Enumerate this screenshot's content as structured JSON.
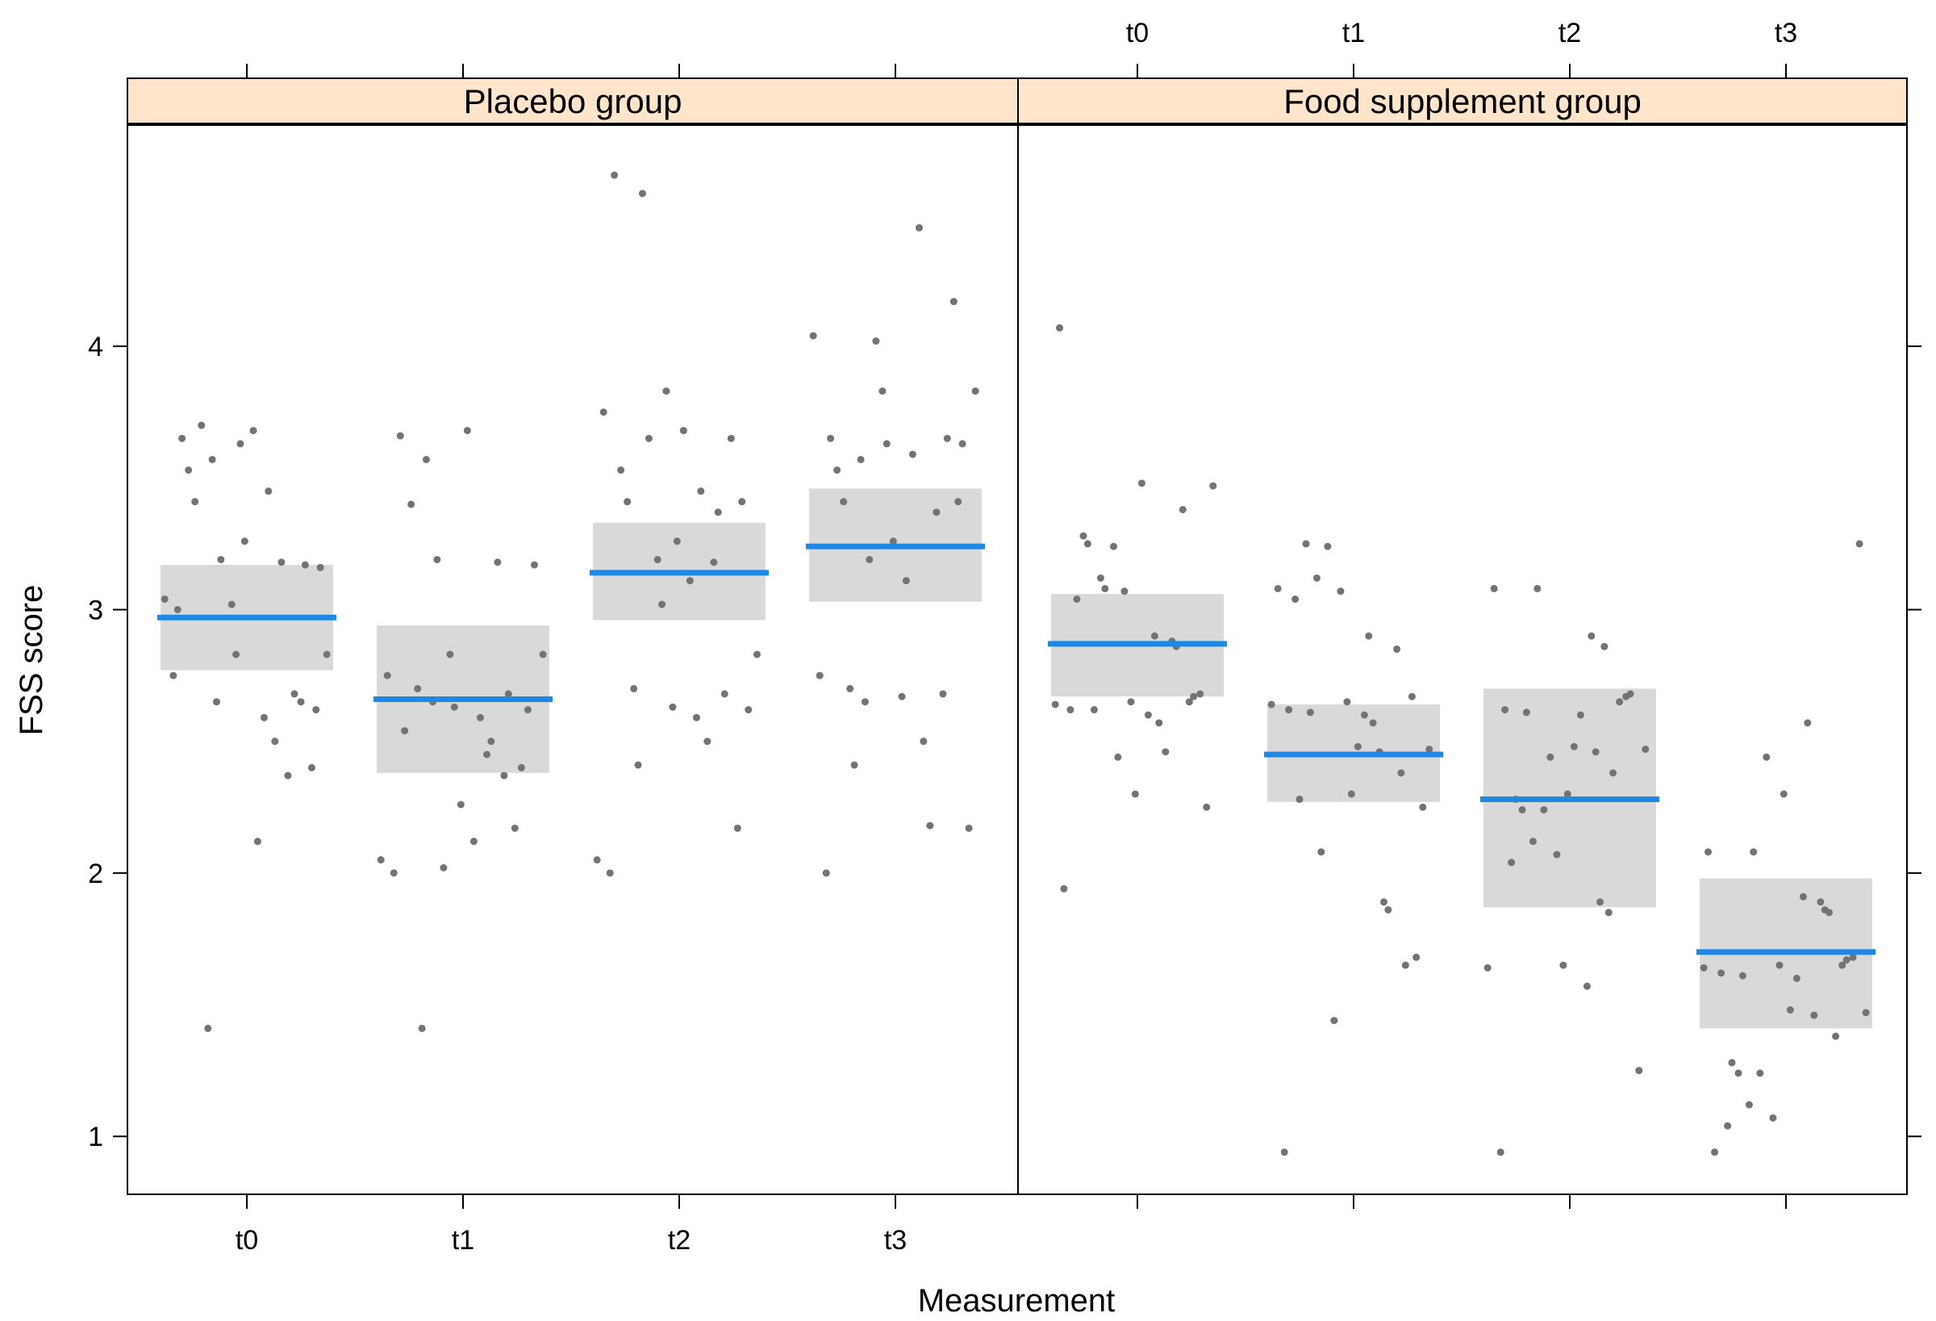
{
  "chart_data": {
    "type": "scatter",
    "xlabel": "Measurement",
    "ylabel": "FSS score",
    "ylim": [
      0.78,
      4.84
    ],
    "categories": [
      "t0",
      "t1",
      "t2",
      "t3"
    ],
    "yticks": [
      "1",
      "2",
      "3",
      "4"
    ],
    "colors": {
      "strip": "#ffe5cc",
      "ci_band": "#d9d9d9",
      "mean_line": "#1f88e5",
      "point": "#737373"
    },
    "panels": [
      {
        "title": "Placebo group",
        "means": [
          2.97,
          2.66,
          3.14,
          3.24
        ],
        "ci": [
          [
            2.77,
            3.17
          ],
          [
            2.38,
            2.94
          ],
          [
            2.96,
            3.33
          ],
          [
            3.03,
            3.46
          ]
        ],
        "points": [
          [
            [
              -0.38,
              3.04
            ],
            [
              -0.34,
              2.75
            ],
            [
              -0.32,
              3.0
            ],
            [
              -0.3,
              3.65
            ],
            [
              -0.27,
              3.53
            ],
            [
              -0.24,
              3.41
            ],
            [
              -0.21,
              3.7
            ],
            [
              -0.18,
              1.41
            ],
            [
              -0.16,
              3.57
            ],
            [
              -0.14,
              2.65
            ],
            [
              -0.12,
              3.19
            ],
            [
              -0.07,
              3.02
            ],
            [
              -0.05,
              2.83
            ],
            [
              -0.03,
              3.63
            ],
            [
              -0.01,
              3.26
            ],
            [
              0.03,
              3.68
            ],
            [
              0.05,
              2.12
            ],
            [
              0.08,
              2.59
            ],
            [
              0.1,
              3.45
            ],
            [
              0.13,
              2.5
            ],
            [
              0.16,
              3.18
            ],
            [
              0.19,
              2.37
            ],
            [
              0.22,
              2.68
            ],
            [
              0.25,
              2.65
            ],
            [
              0.27,
              3.17
            ],
            [
              0.3,
              2.4
            ],
            [
              0.32,
              2.62
            ],
            [
              0.34,
              3.16
            ],
            [
              0.37,
              2.83
            ]
          ],
          [
            [
              -0.38,
              2.05
            ],
            [
              -0.35,
              2.75
            ],
            [
              -0.32,
              2.0
            ],
            [
              -0.29,
              3.66
            ],
            [
              -0.27,
              2.54
            ],
            [
              -0.24,
              3.4
            ],
            [
              -0.21,
              2.7
            ],
            [
              -0.19,
              1.41
            ],
            [
              -0.17,
              3.57
            ],
            [
              -0.14,
              2.65
            ],
            [
              -0.12,
              3.19
            ],
            [
              -0.09,
              2.02
            ],
            [
              -0.06,
              2.83
            ],
            [
              -0.04,
              2.63
            ],
            [
              -0.01,
              2.26
            ],
            [
              0.02,
              3.68
            ],
            [
              0.05,
              2.12
            ],
            [
              0.08,
              2.59
            ],
            [
              0.11,
              2.45
            ],
            [
              0.13,
              2.5
            ],
            [
              0.16,
              3.18
            ],
            [
              0.19,
              2.37
            ],
            [
              0.21,
              2.68
            ],
            [
              0.24,
              2.17
            ],
            [
              0.27,
              2.4
            ],
            [
              0.3,
              2.62
            ],
            [
              0.33,
              3.17
            ],
            [
              0.37,
              2.83
            ]
          ],
          [
            [
              -0.38,
              2.05
            ],
            [
              -0.35,
              3.75
            ],
            [
              -0.32,
              2.0
            ],
            [
              -0.3,
              4.65
            ],
            [
              -0.27,
              3.53
            ],
            [
              -0.24,
              3.41
            ],
            [
              -0.21,
              2.7
            ],
            [
              -0.19,
              2.41
            ],
            [
              -0.17,
              4.58
            ],
            [
              -0.14,
              3.65
            ],
            [
              -0.1,
              3.19
            ],
            [
              -0.08,
              3.02
            ],
            [
              -0.06,
              3.83
            ],
            [
              -0.03,
              2.63
            ],
            [
              -0.01,
              3.26
            ],
            [
              0.02,
              3.68
            ],
            [
              0.05,
              3.11
            ],
            [
              0.08,
              2.59
            ],
            [
              0.1,
              3.45
            ],
            [
              0.13,
              2.5
            ],
            [
              0.16,
              3.18
            ],
            [
              0.18,
              3.37
            ],
            [
              0.21,
              2.68
            ],
            [
              0.24,
              3.65
            ],
            [
              0.27,
              2.17
            ],
            [
              0.29,
              3.41
            ],
            [
              0.32,
              2.62
            ],
            [
              0.36,
              2.83
            ]
          ],
          [
            [
              -0.38,
              4.04
            ],
            [
              -0.35,
              2.75
            ],
            [
              -0.32,
              2.0
            ],
            [
              -0.3,
              3.65
            ],
            [
              -0.27,
              3.53
            ],
            [
              -0.24,
              3.41
            ],
            [
              -0.21,
              2.7
            ],
            [
              -0.19,
              2.41
            ],
            [
              -0.16,
              3.57
            ],
            [
              -0.14,
              2.65
            ],
            [
              -0.12,
              3.19
            ],
            [
              -0.09,
              4.02
            ],
            [
              -0.06,
              3.83
            ],
            [
              -0.04,
              3.63
            ],
            [
              -0.01,
              3.26
            ],
            [
              0.03,
              2.67
            ],
            [
              0.05,
              3.11
            ],
            [
              0.08,
              3.59
            ],
            [
              0.11,
              4.45
            ],
            [
              0.13,
              2.5
            ],
            [
              0.16,
              2.18
            ],
            [
              0.19,
              3.37
            ],
            [
              0.22,
              2.68
            ],
            [
              0.24,
              3.65
            ],
            [
              0.27,
              4.17
            ],
            [
              0.29,
              3.41
            ],
            [
              0.31,
              3.63
            ],
            [
              0.34,
              2.17
            ],
            [
              0.37,
              3.83
            ]
          ]
        ]
      },
      {
        "title": "Food supplement group",
        "means": [
          2.87,
          2.45,
          2.28,
          1.7
        ],
        "ci": [
          [
            2.67,
            3.06
          ],
          [
            2.27,
            2.64
          ],
          [
            1.87,
            2.7
          ],
          [
            1.41,
            1.98
          ]
        ],
        "points": [
          [
            [
              -0.38,
              2.64
            ],
            [
              -0.36,
              4.07
            ],
            [
              -0.34,
              1.94
            ],
            [
              -0.31,
              2.62
            ],
            [
              -0.28,
              3.04
            ],
            [
              -0.25,
              3.28
            ],
            [
              -0.23,
              3.25
            ],
            [
              -0.2,
              2.62
            ],
            [
              -0.17,
              3.12
            ],
            [
              -0.15,
              3.08
            ],
            [
              -0.11,
              3.24
            ],
            [
              -0.09,
              2.44
            ],
            [
              -0.06,
              3.07
            ],
            [
              -0.03,
              2.65
            ],
            [
              -0.01,
              2.3
            ],
            [
              0.02,
              3.48
            ],
            [
              0.05,
              2.6
            ],
            [
              0.08,
              2.9
            ],
            [
              0.1,
              2.57
            ],
            [
              0.13,
              2.46
            ],
            [
              0.16,
              2.88
            ],
            [
              0.18,
              2.86
            ],
            [
              0.21,
              3.38
            ],
            [
              0.24,
              2.65
            ],
            [
              0.26,
              2.67
            ],
            [
              0.29,
              2.68
            ],
            [
              0.32,
              2.25
            ],
            [
              0.35,
              3.47
            ]
          ],
          [
            [
              -0.38,
              2.64
            ],
            [
              -0.35,
              3.08
            ],
            [
              -0.32,
              0.94
            ],
            [
              -0.3,
              2.62
            ],
            [
              -0.27,
              3.04
            ],
            [
              -0.25,
              2.28
            ],
            [
              -0.22,
              3.25
            ],
            [
              -0.2,
              2.61
            ],
            [
              -0.17,
              3.12
            ],
            [
              -0.15,
              2.08
            ],
            [
              -0.12,
              3.24
            ],
            [
              -0.09,
              1.44
            ],
            [
              -0.06,
              3.07
            ],
            [
              -0.03,
              2.65
            ],
            [
              -0.01,
              2.3
            ],
            [
              0.02,
              2.48
            ],
            [
              0.05,
              2.6
            ],
            [
              0.07,
              2.9
            ],
            [
              0.09,
              2.57
            ],
            [
              0.12,
              2.46
            ],
            [
              0.14,
              1.89
            ],
            [
              0.16,
              1.86
            ],
            [
              0.2,
              2.85
            ],
            [
              0.22,
              2.38
            ],
            [
              0.24,
              1.65
            ],
            [
              0.27,
              2.67
            ],
            [
              0.29,
              1.68
            ],
            [
              0.32,
              2.25
            ],
            [
              0.35,
              2.47
            ]
          ],
          [
            [
              -0.38,
              1.64
            ],
            [
              -0.35,
              3.08
            ],
            [
              -0.32,
              0.94
            ],
            [
              -0.3,
              2.62
            ],
            [
              -0.27,
              2.04
            ],
            [
              -0.25,
              2.28
            ],
            [
              -0.22,
              2.24
            ],
            [
              -0.2,
              2.61
            ],
            [
              -0.17,
              2.12
            ],
            [
              -0.15,
              3.08
            ],
            [
              -0.12,
              2.24
            ],
            [
              -0.09,
              2.44
            ],
            [
              -0.06,
              2.07
            ],
            [
              -0.03,
              1.65
            ],
            [
              -0.01,
              2.3
            ],
            [
              0.02,
              2.48
            ],
            [
              0.05,
              2.6
            ],
            [
              0.08,
              1.57
            ],
            [
              0.1,
              2.9
            ],
            [
              0.12,
              2.46
            ],
            [
              0.14,
              1.89
            ],
            [
              0.16,
              2.86
            ],
            [
              0.18,
              1.85
            ],
            [
              0.2,
              2.38
            ],
            [
              0.23,
              2.65
            ],
            [
              0.26,
              2.67
            ],
            [
              0.28,
              2.68
            ],
            [
              0.32,
              1.25
            ],
            [
              0.35,
              2.47
            ]
          ],
          [
            [
              -0.38,
              1.64
            ],
            [
              -0.36,
              2.08
            ],
            [
              -0.33,
              0.94
            ],
            [
              -0.3,
              1.62
            ],
            [
              -0.27,
              1.04
            ],
            [
              -0.25,
              1.28
            ],
            [
              -0.22,
              1.24
            ],
            [
              -0.2,
              1.61
            ],
            [
              -0.17,
              1.12
            ],
            [
              -0.15,
              2.08
            ],
            [
              -0.12,
              1.24
            ],
            [
              -0.09,
              2.44
            ],
            [
              -0.06,
              1.07
            ],
            [
              -0.03,
              1.65
            ],
            [
              -0.01,
              2.3
            ],
            [
              0.02,
              1.48
            ],
            [
              0.05,
              1.6
            ],
            [
              0.08,
              1.91
            ],
            [
              0.1,
              2.57
            ],
            [
              0.13,
              1.46
            ],
            [
              0.16,
              1.89
            ],
            [
              0.18,
              1.86
            ],
            [
              0.2,
              1.85
            ],
            [
              0.23,
              1.38
            ],
            [
              0.26,
              1.65
            ],
            [
              0.28,
              1.67
            ],
            [
              0.31,
              1.68
            ],
            [
              0.34,
              3.25
            ],
            [
              0.37,
              1.47
            ]
          ]
        ]
      }
    ]
  }
}
